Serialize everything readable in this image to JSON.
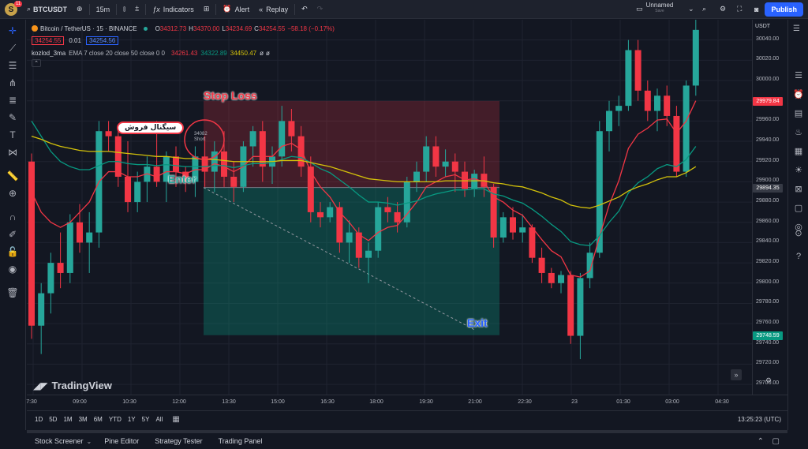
{
  "topbar": {
    "avatar_letter": "S",
    "notif_count": "11",
    "symbol": "BTCUSDT",
    "interval": "15m",
    "indicators": "Indicators",
    "alert": "Alert",
    "replay": "Replay",
    "layout_name": "Unnamed",
    "layout_status": "Save",
    "publish": "Publish"
  },
  "legend": {
    "title": "Bitcoin / TetherUS · 15 · BINANCE",
    "ohlc_o_label": "O",
    "ohlc_o": "34312.73",
    "ohlc_h_label": "H",
    "ohlc_h": "34370.00",
    "ohlc_l_label": "L",
    "ohlc_l": "34234.69",
    "ohlc_c_label": "C",
    "ohlc_c": "34254.55",
    "ohlc_change": "−58.18 (−0.17%)",
    "sell_price": "34254.55",
    "spread": "0.01",
    "buy_price": "34254.56",
    "indicator_name": "kozlod_3ma",
    "indicator_params": "EMA 7 close 20 close 50 close 0 0",
    "ind_val1": "34261.43",
    "ind_val2": "34322.89",
    "ind_val3": "34450.47"
  },
  "annotations": {
    "stop_loss": "Stop Loss",
    "enter": "Enter",
    "exit": "Exit",
    "sell_signal": "سیگنال فروش",
    "short_price": "34082",
    "short_label": "Short"
  },
  "y_axis": {
    "currency": "USDT",
    "ticks": [
      "30040.00",
      "30020.00",
      "30000.00",
      "29960.00",
      "29940.00",
      "29920.00",
      "29900.00",
      "29880.00",
      "29860.00",
      "29840.00",
      "29820.00",
      "29800.00",
      "29780.00",
      "29760.00",
      "29740.00",
      "29720.00",
      "29700.00"
    ],
    "tag_stop": "29979.84",
    "tag_entry": "29894.35",
    "tag_exit": "29748.59"
  },
  "x_axis": {
    "ticks": [
      "7:30",
      "09:00",
      "10:30",
      "12:00",
      "13:30",
      "15:00",
      "16:30",
      "18:00",
      "19:30",
      "21:00",
      "22:30",
      "23",
      "01:30",
      "03:00",
      "04:30"
    ]
  },
  "watermark": "TradingView",
  "ranges": [
    "1D",
    "5D",
    "1M",
    "3M",
    "6M",
    "YTD",
    "1Y",
    "5Y",
    "All"
  ],
  "clock": "13:25:23 (UTC)",
  "bottom_tabs": [
    "Stock Screener",
    "Pine Editor",
    "Strategy Tester",
    "Trading Panel"
  ],
  "colors": {
    "up": "#26a69a",
    "down": "#f23645",
    "ema_fast": "#f23645",
    "ema_mid": "#089981",
    "ema_slow": "#d4c20a",
    "accent": "#2962ff"
  },
  "chart_data": {
    "type": "candlestick",
    "ylim": [
      29690,
      30060
    ],
    "candles": [
      [
        29920,
        29928,
        29745,
        29758
      ],
      [
        29758,
        29800,
        29730,
        29790
      ],
      [
        29790,
        29830,
        29770,
        29820
      ],
      [
        29820,
        29850,
        29795,
        29810
      ],
      [
        29810,
        29868,
        29800,
        29860
      ],
      [
        29860,
        29878,
        29830,
        29840
      ],
      [
        29840,
        29870,
        29810,
        29850
      ],
      [
        29850,
        29960,
        29835,
        29950
      ],
      [
        29950,
        29960,
        29930,
        29945
      ],
      [
        29945,
        29955,
        29895,
        29905
      ],
      [
        29905,
        29940,
        29870,
        29880
      ],
      [
        29880,
        29910,
        29870,
        29900
      ],
      [
        29900,
        29925,
        29880,
        29915
      ],
      [
        29915,
        29960,
        29895,
        29900
      ],
      [
        29900,
        29930,
        29880,
        29925
      ],
      [
        29925,
        29935,
        29895,
        29910
      ],
      [
        29910,
        29915,
        29890,
        29900
      ],
      [
        29900,
        29935,
        29885,
        29925
      ],
      [
        29925,
        29945,
        29895,
        29910
      ],
      [
        29910,
        29940,
        29890,
        29930
      ],
      [
        29930,
        29950,
        29895,
        29905
      ],
      [
        29905,
        29920,
        29880,
        29895
      ],
      [
        29895,
        29940,
        29890,
        29935
      ],
      [
        29935,
        29955,
        29915,
        29950
      ],
      [
        29950,
        29960,
        29900,
        29915
      ],
      [
        29915,
        29935,
        29898,
        29925
      ],
      [
        29925,
        29975,
        29915,
        29960
      ],
      [
        29960,
        29972,
        29930,
        29945
      ],
      [
        29945,
        29955,
        29905,
        29915
      ],
      [
        29915,
        29925,
        29860,
        29870
      ],
      [
        29870,
        29880,
        29855,
        29865
      ],
      [
        29865,
        29880,
        29860,
        29875
      ],
      [
        29875,
        29880,
        29830,
        29840
      ],
      [
        29840,
        29862,
        29820,
        29850
      ],
      [
        29850,
        29855,
        29815,
        29825
      ],
      [
        29825,
        29840,
        29800,
        29832
      ],
      [
        29832,
        29880,
        29825,
        29875
      ],
      [
        29875,
        29885,
        29860,
        29870
      ],
      [
        29870,
        29880,
        29850,
        29860
      ],
      [
        29860,
        29905,
        29855,
        29900
      ],
      [
        29900,
        29920,
        29890,
        29910
      ],
      [
        29910,
        29945,
        29900,
        29935
      ],
      [
        29935,
        29945,
        29905,
        29915
      ],
      [
        29915,
        29932,
        29905,
        29920
      ],
      [
        29920,
        29928,
        29890,
        29910
      ],
      [
        29910,
        29920,
        29885,
        29893
      ],
      [
        29893,
        29912,
        29885,
        29908
      ],
      [
        29908,
        29925,
        29885,
        29895
      ],
      [
        29895,
        29898,
        29835,
        29845
      ],
      [
        29845,
        29870,
        29840,
        29865
      ],
      [
        29865,
        29875,
        29843,
        29850
      ],
      [
        29850,
        29868,
        29840,
        29855
      ],
      [
        29855,
        29858,
        29820,
        29825
      ],
      [
        29825,
        29835,
        29800,
        29810
      ],
      [
        29810,
        29815,
        29795,
        29800
      ],
      [
        29800,
        29812,
        29790,
        29808
      ],
      [
        29808,
        29812,
        29740,
        29748
      ],
      [
        29748,
        29810,
        29725,
        29805
      ],
      [
        29805,
        29840,
        29795,
        29830
      ],
      [
        29830,
        29960,
        29825,
        29950
      ],
      [
        29950,
        29980,
        29930,
        29970
      ],
      [
        29970,
        29985,
        29955,
        29975
      ],
      [
        29975,
        30040,
        29970,
        30030
      ],
      [
        30030,
        30040,
        29980,
        29990
      ],
      [
        29990,
        30000,
        29960,
        29970
      ],
      [
        29970,
        29992,
        29950,
        29985
      ],
      [
        29985,
        29995,
        29955,
        29965
      ],
      [
        29965,
        29975,
        29905,
        29910
      ],
      [
        29910,
        30000,
        29905,
        29995
      ],
      [
        29995,
        30060,
        29985,
        30050
      ]
    ],
    "ema_fast": [
      29890,
      29870,
      29860,
      29855,
      29860,
      29870,
      29880,
      29900,
      29910,
      29910,
      29905,
      29905,
      29908,
      29905,
      29910,
      29910,
      29908,
      29912,
      29912,
      29918,
      29915,
      29910,
      29915,
      29925,
      29925,
      29925,
      29935,
      29938,
      29932,
      29910,
      29895,
      29885,
      29870,
      29860,
      29848,
      29842,
      29850,
      29855,
      29857,
      29868,
      29880,
      29895,
      29900,
      29905,
      29907,
      29902,
      29903,
      29900,
      29885,
      29880,
      29872,
      29867,
      29855,
      29843,
      29832,
      29826,
      29808,
      29806,
      29812,
      29846,
      29877,
      29901,
      29933,
      29947,
      29953,
      29961,
      29962,
      29948,
      29960,
      29980
    ],
    "ema_mid": [
      29960,
      29945,
      29930,
      29920,
      29915,
      29912,
      29912,
      29916,
      29920,
      29920,
      29918,
      29917,
      29917,
      29916,
      29917,
      29916,
      29915,
      29915,
      29915,
      29916,
      29916,
      29914,
      29916,
      29918,
      29918,
      29919,
      29922,
      29925,
      29924,
      29919,
      29913,
      29909,
      29902,
      29895,
      29887,
      29880,
      29880,
      29879,
      29877,
      29879,
      29881,
      29885,
      29888,
      29890,
      29892,
      29892,
      29893,
      29893,
      29888,
      29886,
      29882,
      29879,
      29873,
      29866,
      29858,
      29851,
      29841,
      29838,
      29837,
      29847,
      29860,
      29871,
      29889,
      29899,
      29905,
      29913,
      29917,
      29915,
      29922,
      29935
    ],
    "ema_slow": [
      29945,
      29942,
      29938,
      29935,
      29933,
      29931,
      29930,
      29930,
      29930,
      29929,
      29928,
      29927,
      29926,
      29925,
      29925,
      29924,
      29923,
      29923,
      29922,
      29922,
      29921,
      29920,
      29920,
      29920,
      29920,
      29920,
      29921,
      29921,
      29921,
      29919,
      29917,
      29915,
      29912,
      29909,
      29906,
      29903,
      29902,
      29901,
      29900,
      29900,
      29900,
      29900,
      29900,
      29901,
      29901,
      29901,
      29901,
      29901,
      29899,
      29898,
      29896,
      29895,
      29892,
      29889,
      29885,
      29882,
      29877,
      29875,
      29874,
      29877,
      29881,
      29885,
      29891,
      29895,
      29898,
      29902,
      29905,
      29905,
      29909,
      29915
    ],
    "position": {
      "type": "short",
      "entry": 29894.35,
      "stop": 29979.84,
      "target": 29748.59,
      "start_index": 37,
      "end_index": 94
    }
  }
}
